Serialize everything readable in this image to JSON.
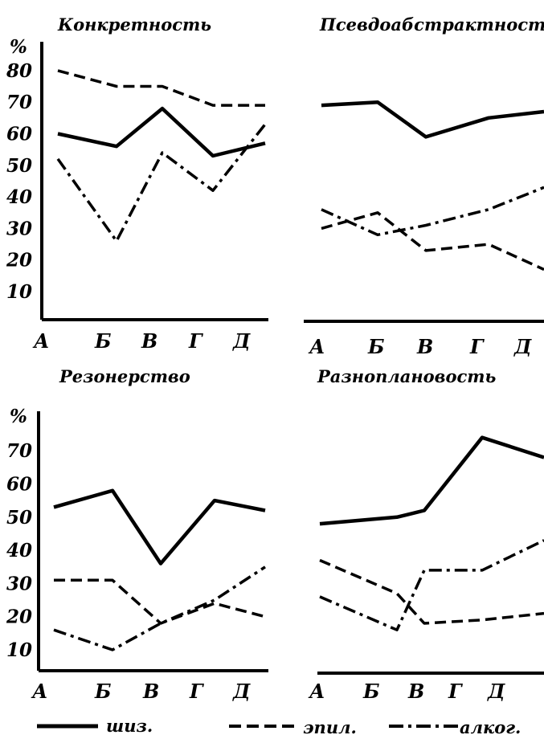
{
  "legend": {
    "schiz_label": "шиз.",
    "epil_label": "эпил.",
    "alco_label": "алког."
  },
  "chart_data": [
    {
      "type": "line",
      "title": "Конкретность",
      "ylabel": "%",
      "yticks": [
        "80",
        "70",
        "60",
        "50",
        "40",
        "30",
        "20",
        "10"
      ],
      "categories": [
        "А",
        "Б",
        "В",
        "Г",
        "Д"
      ],
      "ylim": [
        8,
        86
      ],
      "series": [
        {
          "name": "шиз.",
          "style": "solid",
          "values": [
            60,
            56,
            68,
            53,
            57
          ]
        },
        {
          "name": "эпил.",
          "style": "dashed",
          "values": [
            80,
            75,
            75,
            69,
            69
          ]
        },
        {
          "name": "алког.",
          "style": "dashdot",
          "values": [
            52,
            26,
            54,
            42,
            63
          ]
        }
      ]
    },
    {
      "type": "line",
      "title": "Псевдоабстрактность",
      "categories": [
        "А",
        "Б",
        "В",
        "Г",
        "Д"
      ],
      "ylim": [
        8,
        86
      ],
      "series": [
        {
          "name": "шиз.",
          "style": "solid",
          "values": [
            69,
            70,
            59,
            65,
            67
          ]
        },
        {
          "name": "эпил.",
          "style": "dashed",
          "values": [
            30,
            35,
            23,
            25,
            17
          ]
        },
        {
          "name": "алког.",
          "style": "dashdot",
          "values": [
            36,
            28,
            31,
            36,
            43
          ]
        }
      ]
    },
    {
      "type": "line",
      "title": "Резонерство",
      "ylabel": "%",
      "yticks": [
        "70",
        "60",
        "50",
        "40",
        "30",
        "20",
        "10"
      ],
      "categories": [
        "А",
        "Б",
        "В",
        "Г",
        "Д"
      ],
      "ylim": [
        2,
        77
      ],
      "series": [
        {
          "name": "шиз.",
          "style": "solid",
          "values": [
            53,
            58,
            36,
            55,
            52
          ]
        },
        {
          "name": "эпил.",
          "style": "dashed",
          "values": [
            31,
            31,
            18,
            24,
            20
          ]
        },
        {
          "name": "алког.",
          "style": "dashdot",
          "values": [
            16,
            10,
            18,
            25,
            35
          ]
        }
      ]
    },
    {
      "type": "line",
      "title": "Разноплановость",
      "categories": [
        "А",
        "Б",
        "В",
        "Г",
        "Д"
      ],
      "ylim": [
        2,
        77
      ],
      "series": [
        {
          "name": "шиз.",
          "style": "solid",
          "values": [
            48,
            50,
            52,
            74,
            68
          ]
        },
        {
          "name": "эпил.",
          "style": "dashed",
          "values": [
            37,
            27,
            18,
            19,
            21
          ]
        },
        {
          "name": "алког.",
          "style": "dashdot",
          "values": [
            26,
            16,
            34,
            34,
            43
          ]
        }
      ]
    }
  ]
}
